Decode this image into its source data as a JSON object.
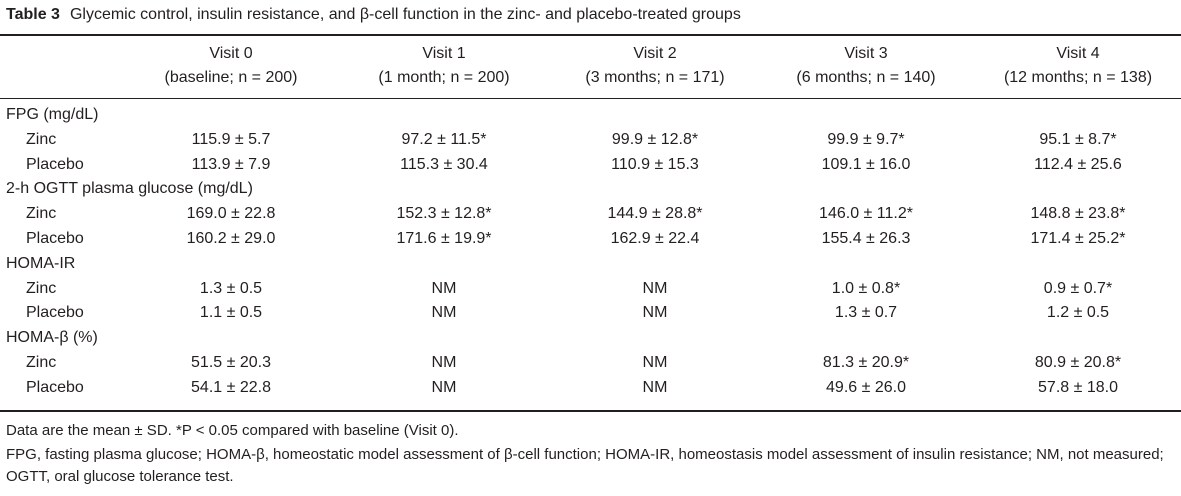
{
  "caption": {
    "label": "Table 3",
    "text": "Glycemic control, insulin resistance, and β-cell function in the zinc- and placebo-treated groups"
  },
  "columns": [
    {
      "line1": "Visit 0",
      "line2": "(baseline; n = 200)"
    },
    {
      "line1": "Visit 1",
      "line2": "(1 month; n = 200)"
    },
    {
      "line1": "Visit 2",
      "line2": "(3 months; n = 171)"
    },
    {
      "line1": "Visit 3",
      "line2": "(6 months; n = 140)"
    },
    {
      "line1": "Visit 4",
      "line2": "(12 months; n = 138)"
    }
  ],
  "rows": [
    {
      "label": "FPG (mg/dL)",
      "section": true,
      "values": [
        "",
        "",
        "",
        "",
        ""
      ]
    },
    {
      "label": "Zinc",
      "section": false,
      "values": [
        "115.9 ± 5.7",
        "97.2 ± 11.5*",
        "99.9 ± 12.8*",
        "99.9 ± 9.7*",
        "95.1 ± 8.7*"
      ]
    },
    {
      "label": "Placebo",
      "section": false,
      "values": [
        "113.9 ± 7.9",
        "115.3 ± 30.4",
        "110.9 ± 15.3",
        "109.1 ± 16.0",
        "112.4 ± 25.6"
      ]
    },
    {
      "label": "2-h OGTT plasma glucose (mg/dL)",
      "section": true,
      "values": [
        "",
        "",
        "",
        "",
        ""
      ]
    },
    {
      "label": "Zinc",
      "section": false,
      "values": [
        "169.0 ± 22.8",
        "152.3 ± 12.8*",
        "144.9 ± 28.8*",
        "146.0 ± 11.2*",
        "148.8 ± 23.8*"
      ]
    },
    {
      "label": "Placebo",
      "section": false,
      "values": [
        "160.2 ± 29.0",
        "171.6 ± 19.9*",
        "162.9 ± 22.4",
        "155.4 ± 26.3",
        "171.4 ± 25.2*"
      ]
    },
    {
      "label": "HOMA-IR",
      "section": true,
      "values": [
        "",
        "",
        "",
        "",
        ""
      ]
    },
    {
      "label": "Zinc",
      "section": false,
      "values": [
        "1.3 ± 0.5",
        "NM",
        "NM",
        "1.0 ± 0.8*",
        "0.9 ± 0.7*"
      ]
    },
    {
      "label": "Placebo",
      "section": false,
      "values": [
        "1.1 ± 0.5",
        "NM",
        "NM",
        "1.3 ± 0.7",
        "1.2 ± 0.5"
      ]
    },
    {
      "label": "HOMA-β (%)",
      "section": true,
      "values": [
        "",
        "",
        "",
        "",
        ""
      ]
    },
    {
      "label": "Zinc",
      "section": false,
      "values": [
        "51.5 ± 20.3",
        "NM",
        "NM",
        "81.3 ± 20.9*",
        "80.9 ± 20.8*"
      ]
    },
    {
      "label": "Placebo",
      "section": false,
      "values": [
        "54.1 ± 22.8",
        "NM",
        "NM",
        "49.6 ± 26.0",
        "57.8 ± 18.0"
      ]
    }
  ],
  "notes": [
    "Data are the mean ± SD. *P < 0.05 compared with baseline (Visit 0).",
    "FPG, fasting plasma glucose; HOMA-β, homeostatic model assessment of β-cell function; HOMA-IR, homeostasis model assessment of insulin resistance; NM, not measured; OGTT, oral glucose tolerance test."
  ]
}
